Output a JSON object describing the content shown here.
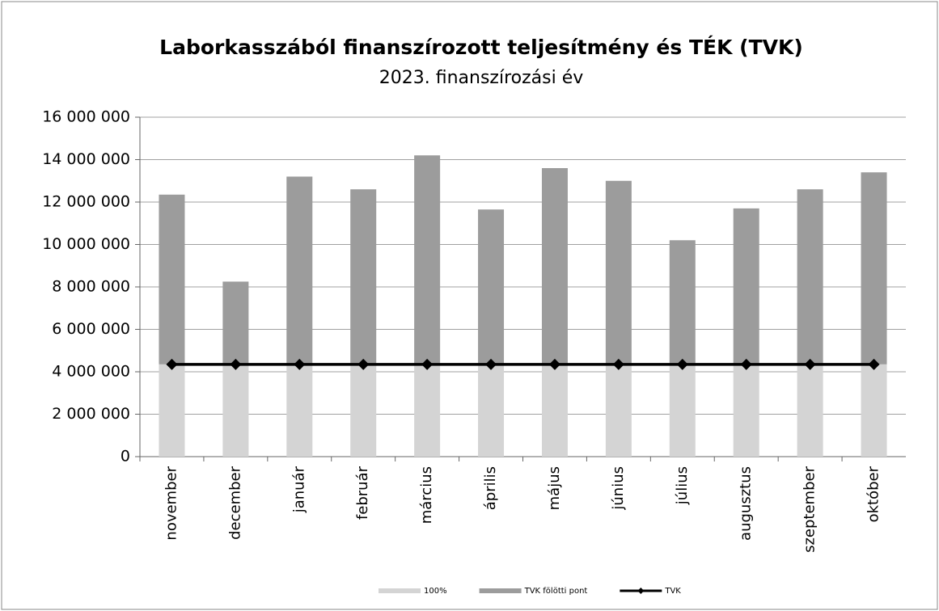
{
  "chart_data": {
    "type": "bar",
    "stacked": true,
    "title": "Laborkasszából finanszírozott teljesítmény és  TÉK (TVK)",
    "subtitle": "2023. finanszírozási év",
    "categories": [
      "november",
      "december",
      "január",
      "február",
      "március",
      "április",
      "május",
      "június",
      "július",
      "augusztus",
      "szeptember",
      "október"
    ],
    "series": [
      {
        "name": "100%",
        "color": "#d4d4d4",
        "values": [
          4350000,
          4350000,
          4350000,
          4350000,
          4350000,
          4350000,
          4350000,
          4350000,
          4350000,
          4350000,
          4350000,
          4350000
        ]
      },
      {
        "name": "TVK fölötti pont",
        "color": "#9c9c9c",
        "values": [
          8000000,
          3900000,
          8850000,
          8250000,
          9850000,
          7300000,
          9250000,
          8650000,
          5850000,
          7350000,
          8250000,
          9050000
        ]
      },
      {
        "name": "TVK",
        "type": "line",
        "color": "#000000",
        "values": [
          4350000,
          4350000,
          4350000,
          4350000,
          4350000,
          4350000,
          4350000,
          4350000,
          4350000,
          4350000,
          4350000,
          4350000
        ]
      }
    ],
    "ylim": [
      0,
      16000000
    ],
    "yticks": [
      0,
      {
        "value": 2000000,
        "label": "2 000 000"
      },
      {
        "value": 4000000,
        "label": "4 000 000"
      },
      {
        "value": 6000000,
        "label": "6 000 000"
      },
      {
        "value": 8000000,
        "label": "8 000 000"
      },
      {
        "value": 10000000,
        "label": "10 000 000"
      },
      {
        "value": 12000000,
        "label": "12 000 000"
      },
      {
        "value": 14000000,
        "label": "14 000 000"
      },
      {
        "value": 16000000,
        "label": "16 000 000"
      }
    ],
    "grid": true,
    "legend": "bottom"
  }
}
